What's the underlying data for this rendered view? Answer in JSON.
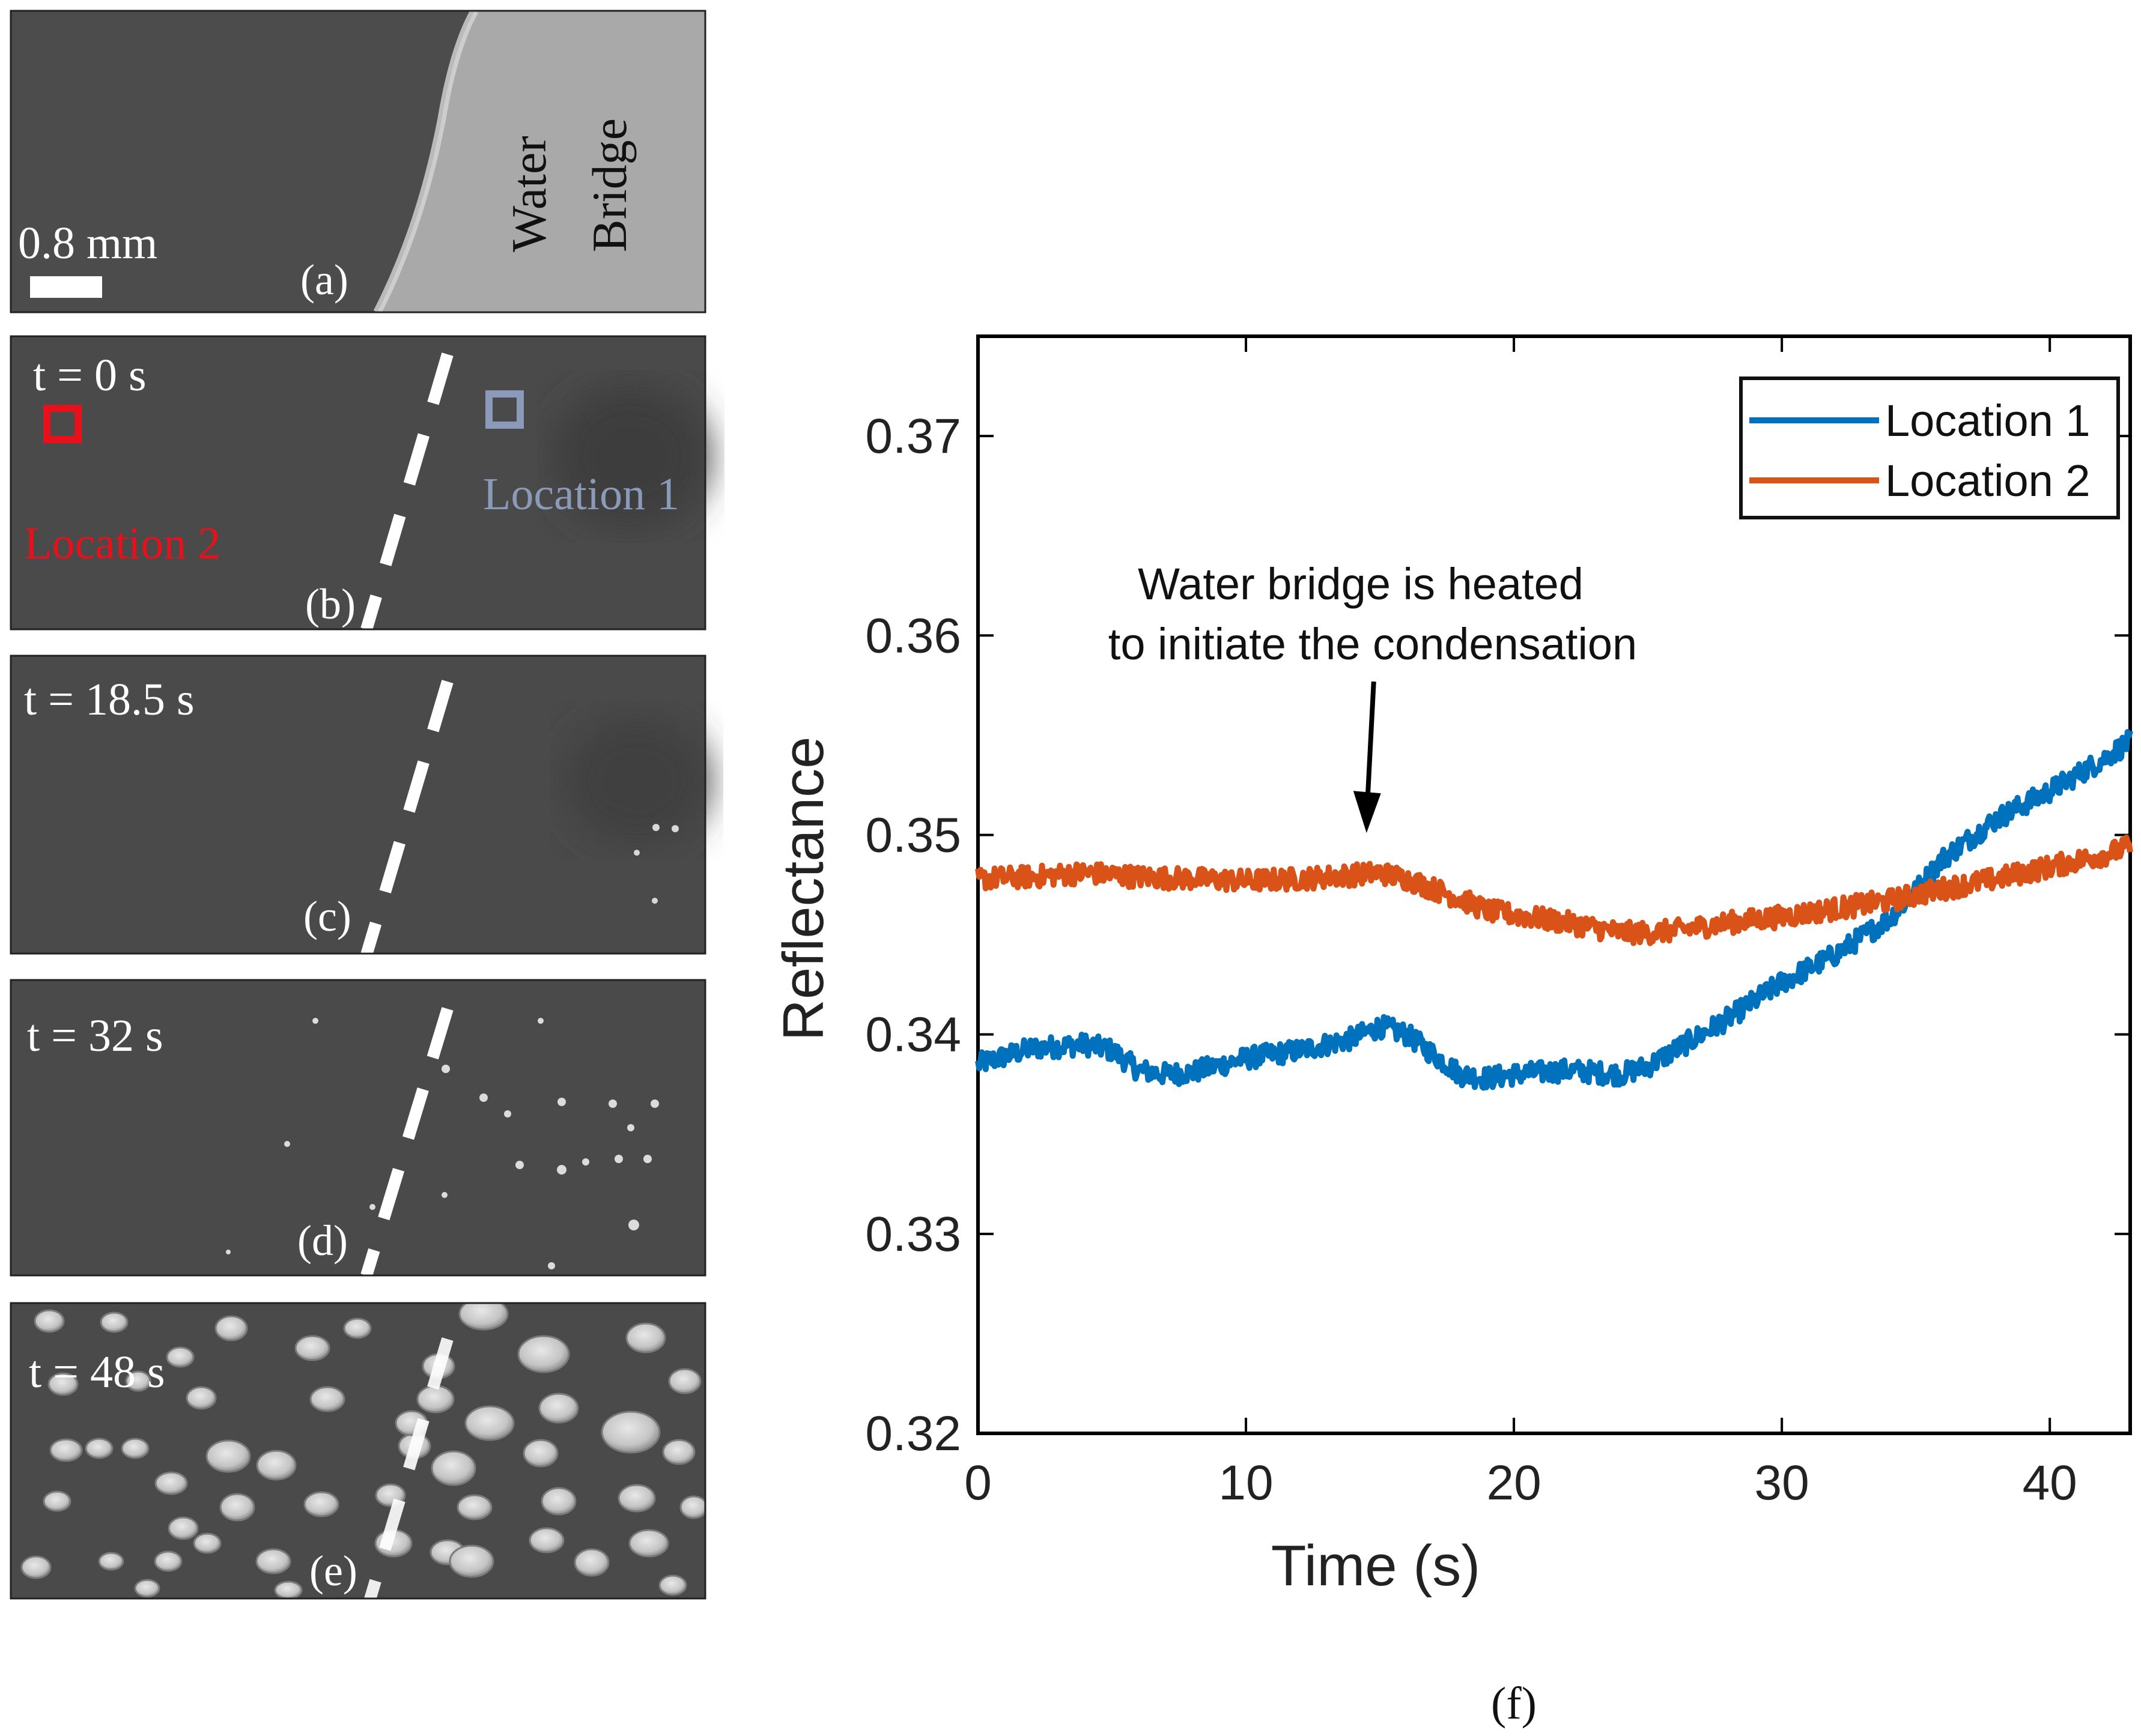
{
  "panels": {
    "a": {
      "label": "(a)",
      "scale_bar": "0.8 mm",
      "region_text_1": "Water",
      "region_text_2": "Bridge"
    },
    "b": {
      "label": "(b)",
      "time": "t = 0 s",
      "location1": "Location 1",
      "location2": "Location 2"
    },
    "c": {
      "label": "(c)",
      "time": "t = 18.5 s"
    },
    "d": {
      "label": "(d)",
      "time": "t = 32 s"
    },
    "e": {
      "label": "(e)",
      "time": "t = 48 s"
    },
    "f": {
      "label": "(f)"
    }
  },
  "colors": {
    "location1": "#0072BD",
    "location2": "#D95319",
    "marker_red": "#e8101a",
    "marker_blue": "#8a9ab8",
    "photo_dark": "#4a4a4a",
    "photo_bridge": "#a8a8a8"
  },
  "chart_data": {
    "type": "line",
    "xlabel": "Time (s)",
    "ylabel": "Reflectance",
    "xlim": [
      0,
      43
    ],
    "ylim": [
      0.32,
      0.375
    ],
    "xticks": [
      0,
      10,
      20,
      30,
      40
    ],
    "yticks": [
      0.32,
      0.33,
      0.34,
      0.35,
      0.36,
      0.37
    ],
    "xtick_labels": [
      "0",
      "10",
      "20",
      "30",
      "40"
    ],
    "ytick_labels": [
      "0.32",
      "0.33",
      "0.34",
      "0.35",
      "0.36",
      "0.37"
    ],
    "grid": false,
    "legend": "top-right",
    "annotation": {
      "line1": "Water bridge is heated",
      "line2": "to initiate the condensation",
      "x": 14.5,
      "y": 0.3498
    },
    "series": [
      {
        "name": "Location 1",
        "color": "#0072BD",
        "x": [
          0,
          2,
          4,
          5,
          6,
          7,
          8,
          10,
          12,
          14,
          15,
          16,
          17,
          18,
          19,
          20,
          22,
          24,
          25,
          26,
          28,
          30,
          32,
          34,
          35,
          36,
          38,
          40,
          42,
          43
        ],
        "y": [
          0.3385,
          0.3393,
          0.3395,
          0.3392,
          0.3382,
          0.338,
          0.3381,
          0.3388,
          0.3392,
          0.3398,
          0.3404,
          0.34,
          0.339,
          0.338,
          0.3378,
          0.338,
          0.3382,
          0.338,
          0.3384,
          0.3392,
          0.3408,
          0.3426,
          0.344,
          0.3458,
          0.3472,
          0.3488,
          0.3508,
          0.3522,
          0.3538,
          0.3547
        ]
      },
      {
        "name": "Location 2",
        "color": "#D95319",
        "x": [
          0,
          2,
          4,
          6,
          8,
          10,
          12,
          14,
          15,
          16,
          17,
          18,
          19,
          20,
          22,
          24,
          25,
          26,
          28,
          30,
          32,
          34,
          36,
          38,
          40,
          42,
          43
        ],
        "y": [
          0.3478,
          0.3479,
          0.3481,
          0.3479,
          0.3478,
          0.3477,
          0.3478,
          0.348,
          0.3481,
          0.3478,
          0.3473,
          0.3468,
          0.3462,
          0.346,
          0.3456,
          0.3451,
          0.3451,
          0.3452,
          0.3456,
          0.3459,
          0.3463,
          0.3467,
          0.3473,
          0.3478,
          0.3484,
          0.349,
          0.3494
        ]
      }
    ]
  }
}
